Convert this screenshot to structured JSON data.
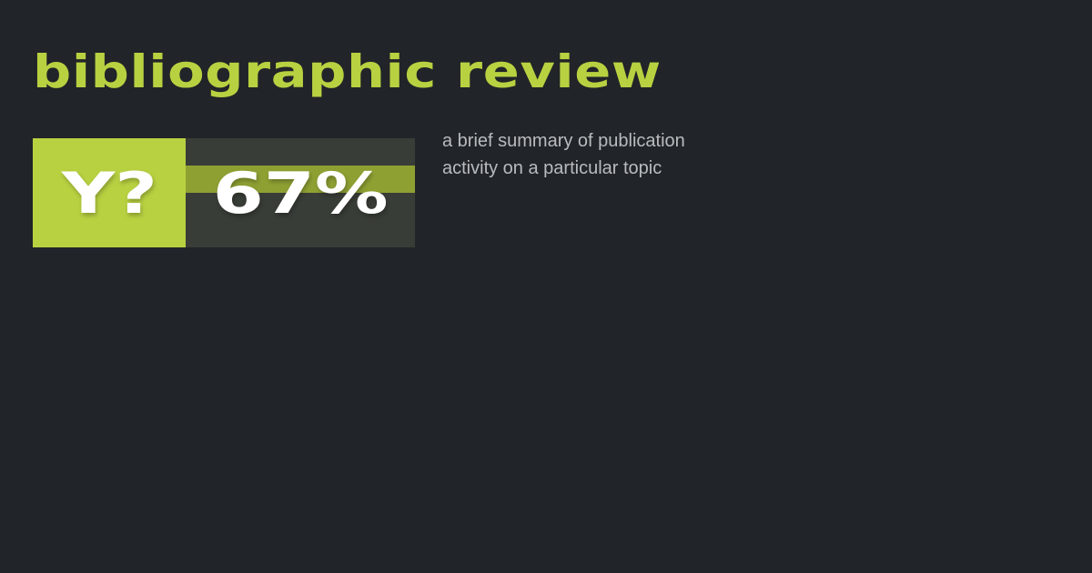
{
  "title": "bibliographic review",
  "badge": {
    "label": "Y?",
    "value": "67%",
    "percent": 67,
    "colors": {
      "accent": "#b8d141",
      "panel": "#393d37",
      "stripe": "#8fa033",
      "background": "#212428"
    }
  },
  "description": "a brief summary of publication activity on a particular topic"
}
